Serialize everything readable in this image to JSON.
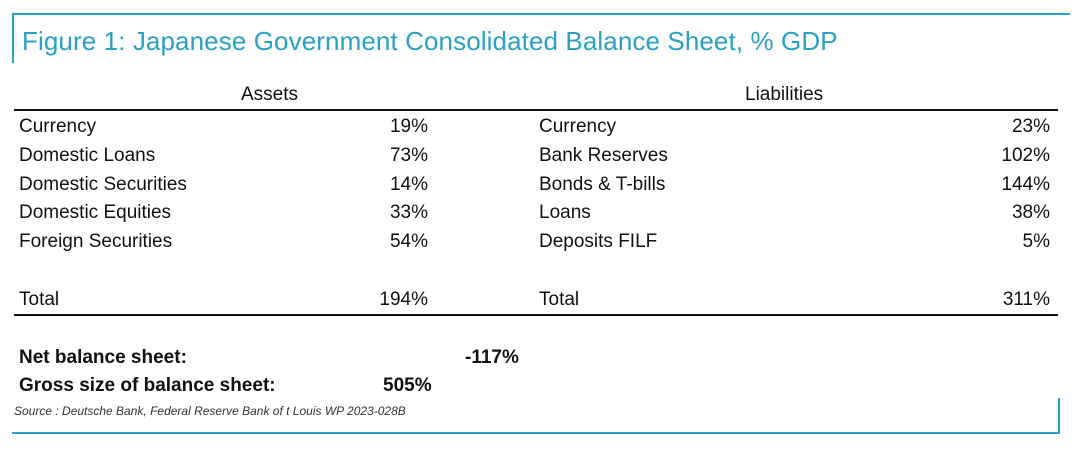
{
  "title": "Figure 1: Japanese Government Consolidated Balance Sheet, % GDP",
  "headers": {
    "assets": "Assets",
    "liabilities": "Liabilities"
  },
  "assets": [
    {
      "label": "Currency",
      "value": "19%"
    },
    {
      "label": "Domestic Loans",
      "value": "73%"
    },
    {
      "label": "Domestic Securities",
      "value": "14%"
    },
    {
      "label": "Domestic Equities",
      "value": "33%"
    },
    {
      "label": "Foreign Securities",
      "value": "54%"
    }
  ],
  "liabilities": [
    {
      "label": "Currency",
      "value": "23%"
    },
    {
      "label": "Bank Reserves",
      "value": "102%"
    },
    {
      "label": "Bonds & T-bills",
      "value": "144%"
    },
    {
      "label": "Loans",
      "value": "38%"
    },
    {
      "label": "Deposits FILF",
      "value": "5%"
    }
  ],
  "totals": {
    "assets_label": "Total",
    "assets_value": "194%",
    "liabilities_label": "Total",
    "liabilities_value": "311%"
  },
  "summary": {
    "net_label": "Net balance sheet:",
    "net_value": "-117%",
    "gross_label": "Gross size of balance sheet:",
    "gross_value": "505%"
  },
  "source": "Source : Deutsche Bank, Federal Reserve Bank of t Louis WP 2023-028B",
  "colors": {
    "accent": "#2aa0c4",
    "text": "#111111"
  }
}
